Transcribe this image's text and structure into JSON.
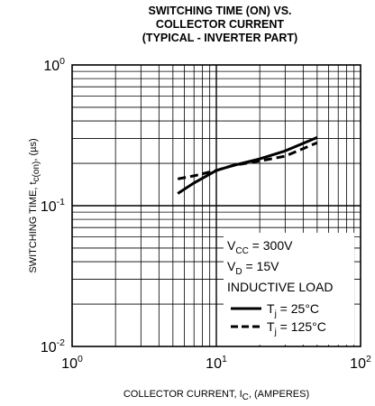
{
  "chart_data": {
    "type": "line",
    "title_lines": [
      "SWITCHING TIME (ON) VS.",
      "COLLECTOR CURRENT",
      "(TYPICAL - INVERTER PART)"
    ],
    "xlabel": {
      "main": "COLLECTOR CURRENT, I",
      "sub": "C",
      "suffix": ", (AMPERES)"
    },
    "ylabel": {
      "main": "SWITCHING TIME, t",
      "sub": "c(on)",
      "suffix": ", (µs)"
    },
    "xscale": "log",
    "yscale": "log",
    "xlim": [
      1,
      100
    ],
    "ylim": [
      0.01,
      1
    ],
    "grid": true,
    "x_ticks": [
      {
        "base": "10",
        "exp": "0"
      },
      {
        "base": "10",
        "exp": "1"
      },
      {
        "base": "10",
        "exp": "2"
      }
    ],
    "y_ticks": [
      {
        "base": "10",
        "exp": "0"
      },
      {
        "base": "10",
        "exp": "-1"
      },
      {
        "base": "10",
        "exp": "-2"
      }
    ],
    "conditions": [
      {
        "main": "V",
        "sub": "CC",
        "rest": " = 300V"
      },
      {
        "main": "V",
        "sub": "D",
        "rest": " = 15V"
      },
      {
        "main": "INDUCTIVE LOAD",
        "sub": "",
        "rest": ""
      }
    ],
    "legend_placement": "lower-right",
    "series": [
      {
        "label": {
          "main": "T",
          "sub": "j",
          "rest": " = 25°C"
        },
        "style": "solid",
        "x": [
          5.4,
          7,
          10,
          13,
          20,
          30,
          50
        ],
        "y": [
          0.122,
          0.145,
          0.178,
          0.193,
          0.215,
          0.245,
          0.305
        ]
      },
      {
        "label": {
          "main": "T",
          "sub": "j",
          "rest": " = 125°C"
        },
        "style": "dashed",
        "x": [
          5.4,
          7,
          10,
          13,
          20,
          30,
          50
        ],
        "y": [
          0.155,
          0.163,
          0.178,
          0.193,
          0.208,
          0.225,
          0.28
        ]
      }
    ]
  }
}
